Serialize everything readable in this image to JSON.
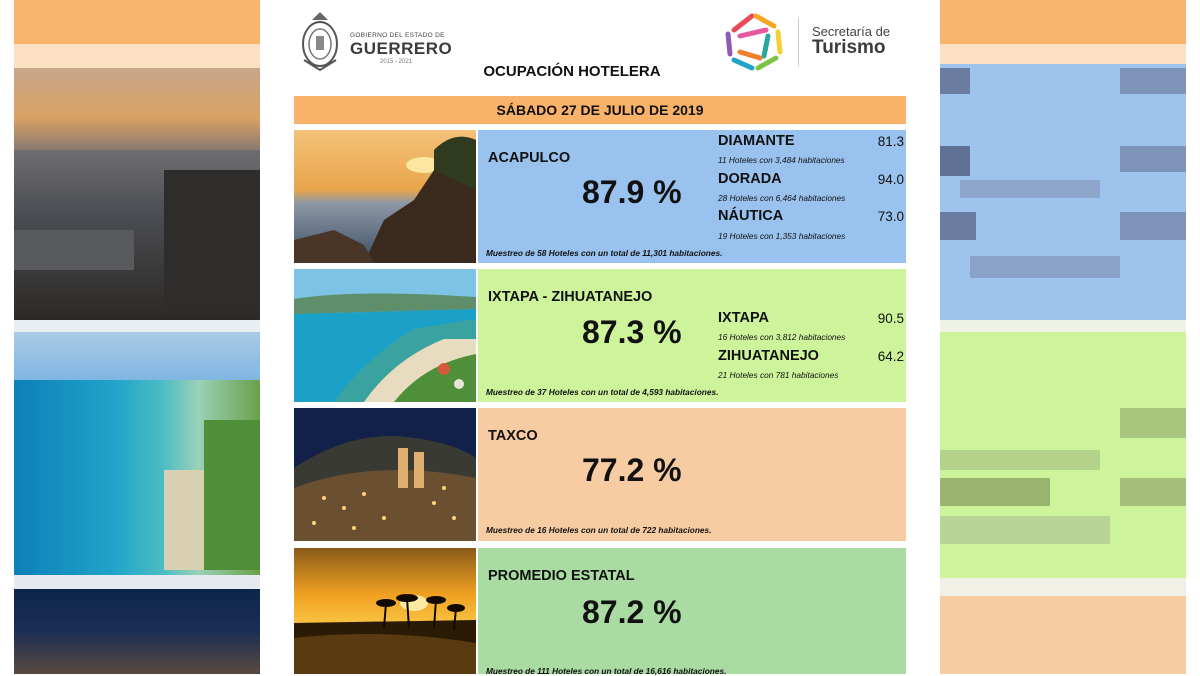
{
  "header": {
    "state_logo": {
      "small": "GOBIERNO DEL ESTADO DE",
      "big": "GUERRERO",
      "years": "2015 - 2021"
    },
    "tourism_logo": {
      "small": "Secretaría de",
      "big": "Turismo"
    },
    "title": "OCUPACIÓN HOTELERA",
    "date": "SÁBADO 27 DE JULIO DE 2019"
  },
  "colors": {
    "date_bar": "#f8b26a",
    "blue_panel": "#99c2ee",
    "green_panel": "#cdf39b",
    "orange_panel": "#f8cca3",
    "teal_panel": "#a9dba3"
  },
  "destinations": [
    {
      "name": "ACAPULCO",
      "pct": "87.9 %",
      "sample": "Muestreo de 58 Hoteles con un total de 11,301 habitaciones.",
      "zones": [
        {
          "name": "DIAMANTE",
          "value": "81.3",
          "detail": "11 Hoteles con 3,484 habitaciones"
        },
        {
          "name": "DORADA",
          "value": "94.0",
          "detail": "28 Hoteles con 6,464 habitaciones"
        },
        {
          "name": "NÁUTICA",
          "value": "73.0",
          "detail": "19 Hoteles con 1,353 habitaciones"
        }
      ]
    },
    {
      "name": "IXTAPA - ZIHUATANEJO",
      "pct": "87.3 %",
      "sample": "Muestreo de 37 Hoteles con un total de 4,593 habitaciones.",
      "zones": [
        {
          "name": "IXTAPA",
          "value": "90.5",
          "detail": "16 Hoteles con 3,812 habitaciones"
        },
        {
          "name": "ZIHUATANEJO",
          "value": "64.2",
          "detail": "21 Hoteles con 781 habitaciones"
        }
      ]
    },
    {
      "name": "TAXCO",
      "pct": "77.2 %",
      "sample": "Muestreo de 16 Hoteles con un total de 722 habitaciones."
    },
    {
      "name": "PROMEDIO ESTATAL",
      "pct": "87.2 %",
      "sample": "Muestreo de 111 Hoteles con un total de 16,616 habitaciones."
    }
  ]
}
